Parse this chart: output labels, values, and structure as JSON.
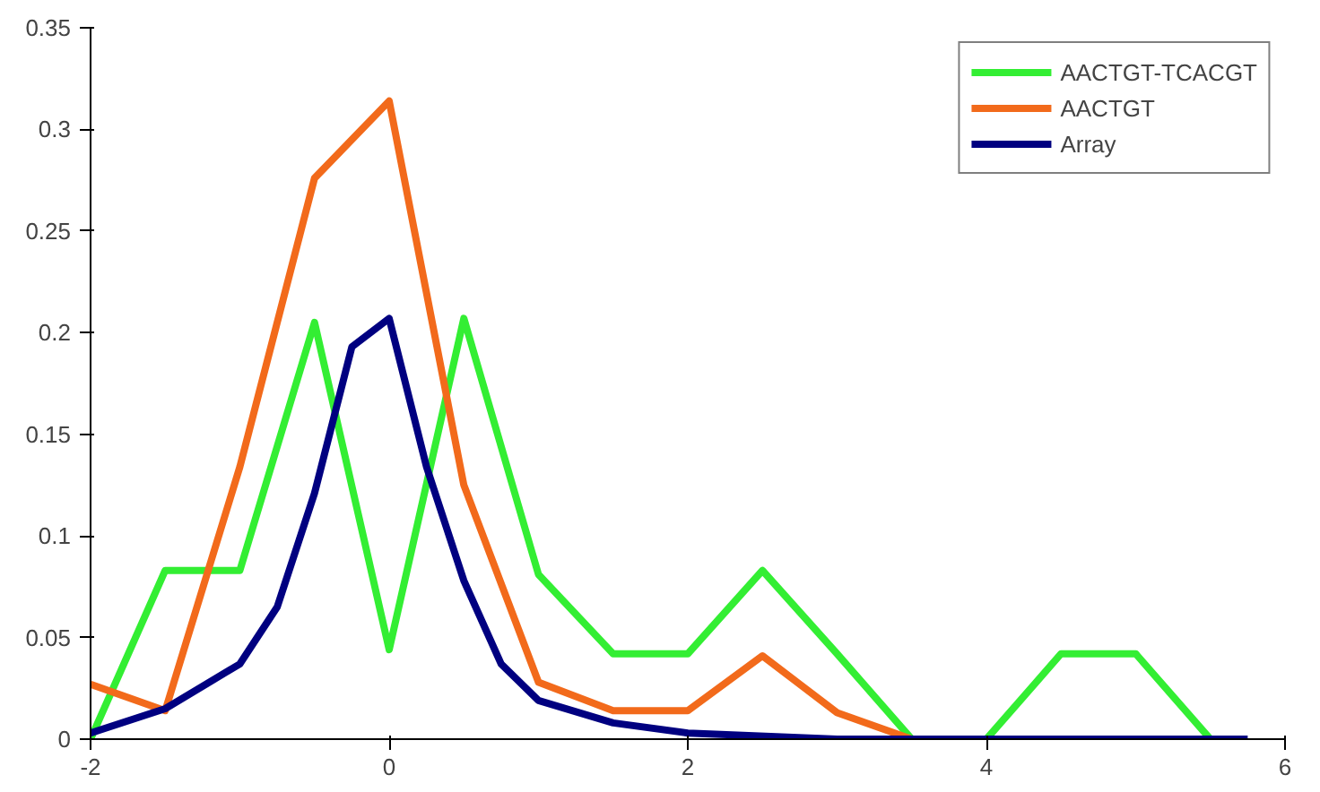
{
  "chart_data": {
    "type": "line",
    "xlim": [
      -2,
      6
    ],
    "xticks": [
      -2,
      0,
      2,
      4,
      6
    ],
    "ylim": [
      0,
      0.35
    ],
    "yticks": [
      0,
      0.05,
      0.1,
      0.15,
      0.2,
      0.25,
      0.3,
      0.35
    ],
    "grid": false,
    "legend": "top right",
    "marker": "none",
    "line_style": "solid",
    "series": [
      {
        "name": "AACTGT-TCACGT",
        "color": "#33ee33",
        "x": [
          -2,
          -1.5,
          -1,
          -0.5,
          0,
          0.5,
          1,
          1.5,
          2,
          2.5,
          3,
          3.5,
          4,
          4.5,
          5,
          5.5
        ],
        "values": [
          0,
          0.083,
          0.083,
          0.205,
          0.044,
          0.207,
          0.081,
          0.042,
          0.042,
          0.083,
          0.042,
          0,
          0,
          0.042,
          0.042,
          0
        ]
      },
      {
        "name": "AACTGT",
        "color": "#f26a1b",
        "x": [
          -2,
          -1.5,
          -1,
          -0.5,
          0,
          0.5,
          1,
          1.5,
          2,
          2.5,
          3,
          3.5
        ],
        "values": [
          0.027,
          0.014,
          0.134,
          0.276,
          0.314,
          0.125,
          0.028,
          0.014,
          0.014,
          0.041,
          0.013,
          0
        ]
      },
      {
        "name": "Array",
        "color": "#000080",
        "x": [
          -2,
          -1.5,
          -1,
          -0.75,
          -0.5,
          -0.25,
          0,
          0.25,
          0.5,
          0.75,
          1,
          1.5,
          2,
          3,
          4,
          5,
          5.75
        ],
        "values": [
          0.003,
          0.015,
          0.037,
          0.065,
          0.121,
          0.193,
          0.207,
          0.134,
          0.078,
          0.037,
          0.019,
          0.008,
          0.003,
          0,
          0,
          0,
          0
        ]
      }
    ]
  }
}
